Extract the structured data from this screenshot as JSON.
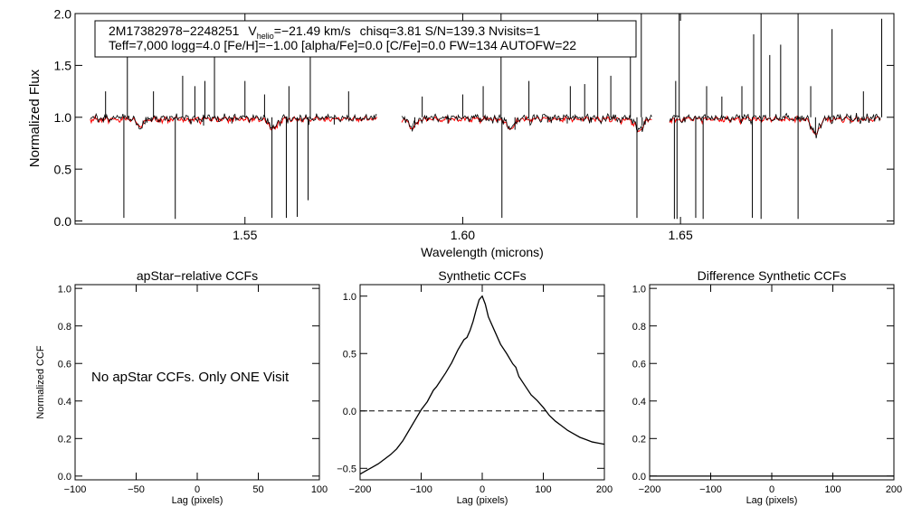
{
  "chart_data": [
    {
      "type": "line",
      "id": "spectrum",
      "title": "",
      "xlabel": "Wavelength (microns)",
      "ylabel": "Normalized Flux",
      "xlim": [
        1.511,
        1.699
      ],
      "ylim": [
        -0.03,
        2.0
      ],
      "xticks": [
        1.55,
        1.6,
        1.65
      ],
      "xtick_labels": [
        "1.55",
        "1.60",
        "1.65"
      ],
      "yticks": [
        0.0,
        0.5,
        1.0,
        1.5,
        2.0
      ],
      "ytick_labels": [
        "0.0",
        "0.5",
        "1.0",
        "1.5",
        "2.0"
      ],
      "chips": [
        [
          1.5145,
          1.5805
        ],
        [
          1.586,
          1.6435
        ],
        [
          1.6475,
          1.696
        ]
      ],
      "series": [
        {
          "name": "observed",
          "color": "#000000"
        },
        {
          "name": "synthetic",
          "color": "#ff0000"
        }
      ],
      "absorption_lines": [
        {
          "x": 1.5175,
          "d": 0.05
        },
        {
          "x": 1.5222,
          "d": 0.97
        },
        {
          "x": 1.5285,
          "d": 0.04
        },
        {
          "x": 1.534,
          "d": 0.98
        },
        {
          "x": 1.5405,
          "d": 0.08
        },
        {
          "x": 1.547,
          "d": 0.06
        },
        {
          "x": 1.5562,
          "d": 0.97
        },
        {
          "x": 1.5595,
          "d": 0.97
        },
        {
          "x": 1.562,
          "d": 0.96
        },
        {
          "x": 1.5645,
          "d": 0.8
        },
        {
          "x": 1.5705,
          "d": 0.07
        },
        {
          "x": 1.589,
          "d": 0.1
        },
        {
          "x": 1.5966,
          "d": 0.06
        },
        {
          "x": 1.609,
          "d": 0.97
        },
        {
          "x": 1.612,
          "d": 0.12
        },
        {
          "x": 1.6195,
          "d": 0.05
        },
        {
          "x": 1.624,
          "d": 0.06
        },
        {
          "x": 1.6295,
          "d": 0.05
        },
        {
          "x": 1.64,
          "d": 0.97
        },
        {
          "x": 1.6412,
          "d": 0.08
        },
        {
          "x": 1.6486,
          "d": 0.98
        },
        {
          "x": 1.6492,
          "d": 0.98
        },
        {
          "x": 1.6535,
          "d": 0.97
        },
        {
          "x": 1.6552,
          "d": 0.98
        },
        {
          "x": 1.6665,
          "d": 0.97
        },
        {
          "x": 1.6685,
          "d": 0.98
        },
        {
          "x": 1.677,
          "d": 0.98
        },
        {
          "x": 1.681,
          "d": 0.15
        },
        {
          "x": 1.689,
          "d": 0.06
        }
      ],
      "emission_spikes": [
        {
          "x": 1.518,
          "h": 1.25
        },
        {
          "x": 1.523,
          "h": 1.6
        },
        {
          "x": 1.529,
          "h": 1.25
        },
        {
          "x": 1.5357,
          "h": 1.4
        },
        {
          "x": 1.5385,
          "h": 1.3
        },
        {
          "x": 1.5408,
          "h": 1.35
        },
        {
          "x": 1.543,
          "h": 1.7
        },
        {
          "x": 1.55,
          "h": 1.35
        },
        {
          "x": 1.5545,
          "h": 1.22
        },
        {
          "x": 1.5601,
          "h": 1.3
        },
        {
          "x": 1.565,
          "h": 1.6
        },
        {
          "x": 1.5738,
          "h": 1.25
        },
        {
          "x": 1.5907,
          "h": 1.2
        },
        {
          "x": 1.6,
          "h": 1.22
        },
        {
          "x": 1.6047,
          "h": 1.3
        },
        {
          "x": 1.6088,
          "h": 2.0
        },
        {
          "x": 1.6152,
          "h": 1.35
        },
        {
          "x": 1.6247,
          "h": 1.3
        },
        {
          "x": 1.628,
          "h": 1.32
        },
        {
          "x": 1.631,
          "h": 2.0
        },
        {
          "x": 1.634,
          "h": 1.4
        },
        {
          "x": 1.6385,
          "h": 1.7
        },
        {
          "x": 1.641,
          "h": 2.0
        },
        {
          "x": 1.6489,
          "h": 1.35
        },
        {
          "x": 1.6497,
          "h": 2.0
        },
        {
          "x": 1.656,
          "h": 1.3
        },
        {
          "x": 1.6595,
          "h": 1.2
        },
        {
          "x": 1.6641,
          "h": 1.3
        },
        {
          "x": 1.6668,
          "h": 1.8
        },
        {
          "x": 1.6685,
          "h": 2.0
        },
        {
          "x": 1.6705,
          "h": 1.6
        },
        {
          "x": 1.673,
          "h": 1.7
        },
        {
          "x": 1.677,
          "h": 2.0
        },
        {
          "x": 1.6799,
          "h": 1.3
        },
        {
          "x": 1.6848,
          "h": 1.85
        },
        {
          "x": 1.692,
          "h": 1.25
        },
        {
          "x": 1.6962,
          "h": 1.95
        }
      ],
      "broad_features": [
        {
          "x": 1.511,
          "d": 0.1
        },
        {
          "x": 1.526,
          "d": 0.07
        },
        {
          "x": 1.5565,
          "d": 0.1
        },
        {
          "x": 1.5885,
          "d": 0.08
        },
        {
          "x": 1.611,
          "d": 0.1
        },
        {
          "x": 1.6405,
          "d": 0.12
        },
        {
          "x": 1.681,
          "d": 0.15
        }
      ],
      "annotation": {
        "line1": {
          "star": "2M17382978−2248251",
          "v_symbol": "V",
          "v_sub": "helio",
          "v_value": "=−21.49 km/s",
          "rest": "chisq=3.81  S/N=139.3  Nvisits=1"
        },
        "line2": "Teff=7,000 logg=4.0 [Fe/H]=−1.00 [alpha/Fe]=0.0 [C/Fe]=0.0 FW=134 AUTOFW=22"
      }
    },
    {
      "type": "line",
      "id": "apstar_ccf",
      "title": "apStar−relative CCFs",
      "xlabel": "Lag (pixels)",
      "ylabel": "Normalized CCF",
      "xlim": [
        -100,
        100
      ],
      "ylim": [
        -0.02,
        1.02
      ],
      "xticks": [
        -100,
        -50,
        0,
        50,
        100
      ],
      "xtick_labels": [
        "−100",
        "−50",
        "0",
        "50",
        "100"
      ],
      "yticks": [
        0.0,
        0.2,
        0.4,
        0.6,
        0.8,
        1.0
      ],
      "ytick_labels": [
        "0.0",
        "0.2",
        "0.4",
        "0.6",
        "0.8",
        "1.0"
      ],
      "message": "No apStar CCFs.  Only ONE Visit",
      "series": []
    },
    {
      "type": "line",
      "id": "synthetic_ccf",
      "title": "Synthetic CCFs",
      "xlabel": "Lag (pixels)",
      "ylabel": "",
      "xlim": [
        -200,
        200
      ],
      "ylim": [
        -0.6,
        1.1
      ],
      "xticks": [
        -200,
        -100,
        0,
        100,
        200
      ],
      "xtick_labels": [
        "−200",
        "−100",
        "0",
        "100",
        "200"
      ],
      "yticks": [
        -0.5,
        0.0,
        0.5,
        1.0
      ],
      "ytick_labels": [
        "−0.5",
        "0.0",
        "0.5",
        "1.0"
      ],
      "zero_line": 0.0,
      "series": [
        {
          "name": "ccf",
          "color": "#000000",
          "x": [
            -200,
            -190,
            -180,
            -170,
            -160,
            -150,
            -140,
            -130,
            -120,
            -110,
            -100,
            -90,
            -80,
            -75,
            -70,
            -60,
            -50,
            -40,
            -30,
            -25,
            -20,
            -15,
            -10,
            -5,
            0,
            5,
            10,
            20,
            30,
            40,
            50,
            55,
            60,
            70,
            80,
            90,
            100,
            110,
            120,
            130,
            140,
            150,
            160,
            170,
            180,
            190,
            200
          ],
          "y": [
            -0.55,
            -0.52,
            -0.49,
            -0.46,
            -0.42,
            -0.38,
            -0.33,
            -0.26,
            -0.17,
            -0.08,
            0.01,
            0.08,
            0.18,
            0.21,
            0.25,
            0.33,
            0.42,
            0.53,
            0.62,
            0.64,
            0.7,
            0.78,
            0.88,
            0.97,
            1.0,
            0.93,
            0.82,
            0.7,
            0.58,
            0.5,
            0.41,
            0.38,
            0.3,
            0.22,
            0.14,
            0.09,
            0.03,
            -0.04,
            -0.09,
            -0.13,
            -0.17,
            -0.2,
            -0.23,
            -0.25,
            -0.27,
            -0.28,
            -0.29
          ]
        }
      ]
    },
    {
      "type": "line",
      "id": "difference_ccf",
      "title": "Difference Synthetic CCFs",
      "xlabel": "Lag (pixels)",
      "ylabel": "",
      "xlim": [
        -200,
        200
      ],
      "ylim": [
        -0.02,
        1.02
      ],
      "xticks": [
        -200,
        -100,
        0,
        100,
        200
      ],
      "xtick_labels": [
        "−200",
        "−100",
        "0",
        "100",
        "200"
      ],
      "yticks": [
        0.0,
        0.2,
        0.4,
        0.6,
        0.8,
        1.0
      ],
      "ytick_labels": [
        "0.0",
        "0.2",
        "0.4",
        "0.6",
        "0.8",
        "1.0"
      ],
      "series": [
        {
          "name": "difference",
          "color": "#000000",
          "x": [
            -200,
            200
          ],
          "y": [
            0.0,
            0.0
          ]
        }
      ]
    }
  ]
}
